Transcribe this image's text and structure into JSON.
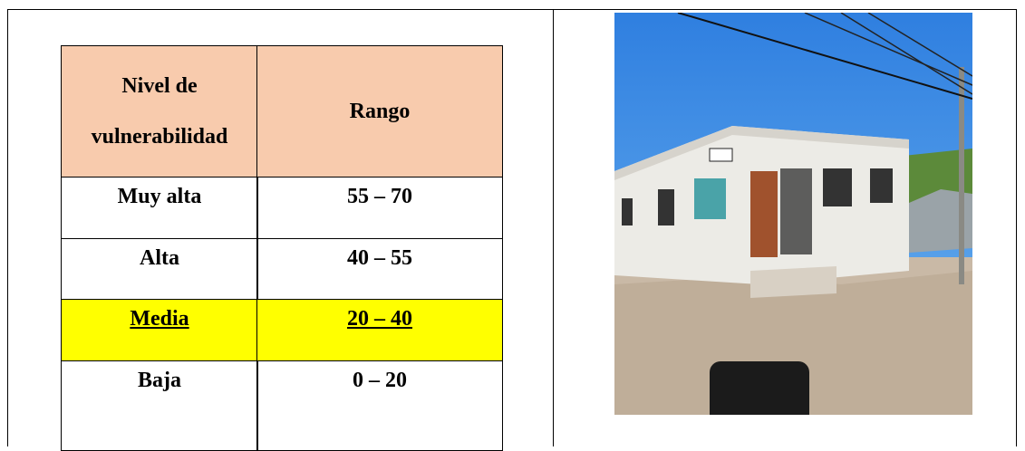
{
  "table": {
    "header": [
      "Nivel de vulnerabilidad",
      "Rango"
    ],
    "rows": [
      [
        "Muy alta",
        "55 – 70"
      ],
      [
        "Alta",
        "40 – 55"
      ],
      [
        "Media",
        "20 – 40"
      ],
      [
        "Baja",
        "0 – 20"
      ]
    ],
    "highlighted_row": 2
  }
}
